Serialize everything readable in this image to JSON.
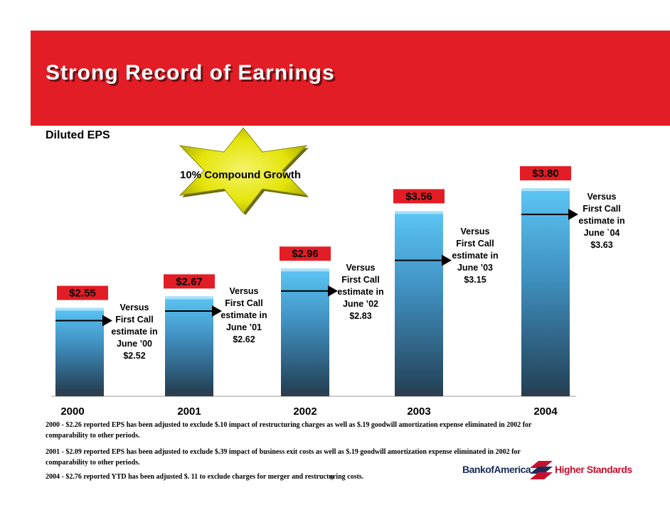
{
  "slide": {
    "title": "Strong Record of Earnings",
    "subtitle": "Diluted EPS",
    "growth_label": "10% Compound Growth",
    "page_number": "9"
  },
  "chart_data": {
    "type": "bar",
    "title": "Diluted EPS",
    "categories": [
      "2000",
      "2001",
      "2002",
      "2003",
      "2004"
    ],
    "values": [
      2.55,
      2.67,
      2.96,
      3.56,
      3.8
    ],
    "value_labels": [
      "$2.55",
      "$2.67",
      "$2.96",
      "$3.56",
      "$3.80"
    ],
    "first_call_estimates": [
      2.52,
      2.62,
      2.83,
      3.15,
      3.63
    ],
    "estimate_notes": [
      [
        "Versus",
        "First Call",
        "estimate in",
        "June ’00",
        "$2.52"
      ],
      [
        "Versus",
        "First Call",
        "estimate in",
        "June ’01",
        "$2.62"
      ],
      [
        "Versus",
        "First Call",
        "estimate in",
        "June ’02",
        "$2.83"
      ],
      [
        "Versus",
        "First Call",
        "estimate in",
        "June ’03",
        "$3.15"
      ],
      [
        "Versus",
        "First Call",
        "estimate in",
        "June `04",
        "$3.63"
      ]
    ],
    "annotation": "10% Compound Growth",
    "xlabel": "",
    "ylabel": "",
    "ylim": [
      1.7,
      3.8
    ]
  },
  "footnotes": [
    "2000 - $2.26 reported EPS has been adjusted to exclude $.10 impact of restructuring charges as well as $.19 goodwill amortization expense eliminated in 2002 for comparability to other periods.",
    "2001 - $2.09 reported EPS has been adjusted to exclude $.39 impact of business exit costs as well as $.19 goodwill amortization expense eliminated in 2002 for comparability to other periods.",
    "2004 - $2.76 reported YTD has been adjusted $. 11 to exclude  charges for merger and restructuring costs."
  ],
  "logo": {
    "brand": "BankofAmerica",
    "tagline": "Higher Standards"
  },
  "colors": {
    "banner": "#e31d25",
    "bar_top": "#5cc6f5",
    "bar_bottom": "#25445a",
    "value_box": "#e31d25",
    "burst": "#e4e40a"
  }
}
